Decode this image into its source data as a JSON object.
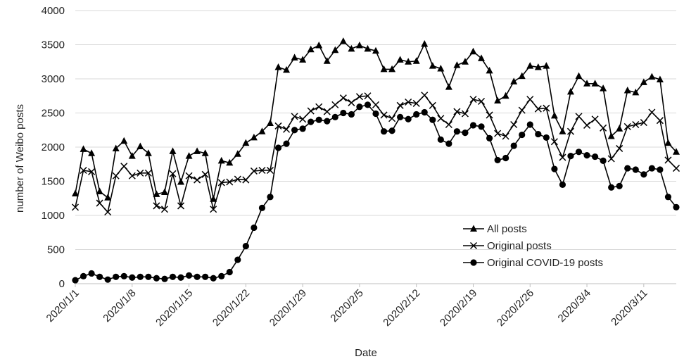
{
  "chart_data": {
    "type": "line",
    "title": "",
    "xlabel": "Date",
    "ylabel": "number of Weibo posts",
    "ylim": [
      0,
      4000
    ],
    "yticks": [
      0,
      500,
      1000,
      1500,
      2000,
      2500,
      3000,
      3500,
      4000
    ],
    "x_tick_labels": [
      "2020/1/1",
      "2020/1/8",
      "2020/1/15",
      "2020/1/22",
      "2020/1/29",
      "2020/2/5",
      "2020/2/12",
      "2020/2/19",
      "2020/2/26",
      "2020/3/4",
      "2020/3/11"
    ],
    "x_start": "2020/1/1",
    "x_end": "2020/3/15",
    "grid": "horizontal",
    "legend_position": "bottom-right",
    "series": [
      {
        "name": "All posts",
        "marker": "triangle",
        "color": "#000000",
        "values": [
          1320,
          1970,
          1910,
          1350,
          1260,
          1980,
          2090,
          1870,
          2010,
          1910,
          1310,
          1340,
          1940,
          1490,
          1870,
          1940,
          1910,
          1240,
          1800,
          1770,
          1900,
          2060,
          2140,
          2230,
          2350,
          3170,
          3130,
          3310,
          3280,
          3430,
          3490,
          3260,
          3420,
          3550,
          3440,
          3490,
          3440,
          3410,
          3140,
          3140,
          3280,
          3250,
          3260,
          3510,
          3190,
          3150,
          2880,
          3200,
          3250,
          3400,
          3300,
          3120,
          2680,
          2750,
          2960,
          3040,
          3190,
          3170,
          3190,
          2460,
          2230,
          2810,
          3040,
          2930,
          2930,
          2860,
          2160,
          2270,
          2830,
          2800,
          2950,
          3030,
          2990,
          2060,
          1930
        ]
      },
      {
        "name": "Original posts",
        "marker": "x",
        "color": "#000000",
        "values": [
          1120,
          1660,
          1640,
          1180,
          1050,
          1580,
          1720,
          1580,
          1620,
          1620,
          1140,
          1090,
          1610,
          1140,
          1580,
          1520,
          1600,
          1090,
          1480,
          1490,
          1530,
          1520,
          1650,
          1660,
          1660,
          2310,
          2260,
          2450,
          2410,
          2530,
          2590,
          2520,
          2620,
          2720,
          2650,
          2740,
          2750,
          2620,
          2470,
          2420,
          2610,
          2660,
          2640,
          2760,
          2610,
          2420,
          2330,
          2520,
          2490,
          2700,
          2670,
          2470,
          2200,
          2160,
          2330,
          2540,
          2700,
          2560,
          2570,
          2080,
          1850,
          2230,
          2450,
          2320,
          2410,
          2280,
          1830,
          1980,
          2300,
          2330,
          2360,
          2510,
          2390,
          1810,
          1690
        ]
      },
      {
        "name": "Original COVID-19 posts",
        "marker": "circle",
        "color": "#000000",
        "values": [
          50,
          110,
          150,
          100,
          60,
          100,
          110,
          90,
          100,
          100,
          80,
          70,
          100,
          90,
          120,
          100,
          100,
          80,
          110,
          170,
          350,
          550,
          820,
          1110,
          1270,
          1990,
          2050,
          2250,
          2270,
          2370,
          2400,
          2380,
          2440,
          2500,
          2480,
          2590,
          2620,
          2490,
          2230,
          2240,
          2440,
          2410,
          2480,
          2510,
          2400,
          2110,
          2050,
          2230,
          2210,
          2320,
          2300,
          2130,
          1810,
          1840,
          2020,
          2180,
          2330,
          2190,
          2140,
          1680,
          1450,
          1870,
          1930,
          1880,
          1860,
          1800,
          1410,
          1430,
          1690,
          1670,
          1600,
          1690,
          1670,
          1270,
          1120
        ]
      }
    ]
  }
}
